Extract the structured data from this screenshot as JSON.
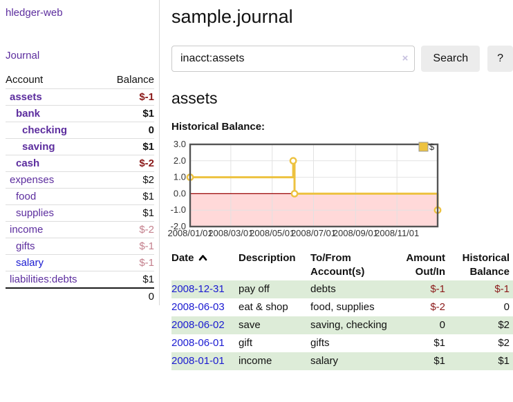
{
  "brand": "hledger-web",
  "nav": {
    "journal_label": "Journal"
  },
  "sidebar_accounts": {
    "headers": {
      "account": "Account",
      "balance": "Balance"
    },
    "rows": [
      {
        "name": "assets",
        "level": 1,
        "bold": true,
        "balance": "$-1",
        "balance_tone": "neg-strong",
        "link_tone": "visited"
      },
      {
        "name": "bank",
        "level": 2,
        "bold": true,
        "balance": "$1",
        "balance_tone": "normal",
        "link_tone": "visited"
      },
      {
        "name": "checking",
        "level": 3,
        "bold": true,
        "balance": "0",
        "balance_tone": "normal",
        "link_tone": "visited"
      },
      {
        "name": "saving",
        "level": 3,
        "bold": true,
        "balance": "$1",
        "balance_tone": "normal",
        "link_tone": "visited"
      },
      {
        "name": "cash",
        "level": 2,
        "bold": true,
        "balance": "$-2",
        "balance_tone": "neg-strong",
        "link_tone": "visited"
      },
      {
        "name": "expenses",
        "level": 1,
        "bold": false,
        "balance": "$2",
        "balance_tone": "normal",
        "link_tone": "visited"
      },
      {
        "name": "food",
        "level": 2,
        "bold": false,
        "balance": "$1",
        "balance_tone": "normal",
        "link_tone": "visited"
      },
      {
        "name": "supplies",
        "level": 2,
        "bold": false,
        "balance": "$1",
        "balance_tone": "normal",
        "link_tone": "visited"
      },
      {
        "name": "income",
        "level": 1,
        "bold": false,
        "balance": "$-2",
        "balance_tone": "neg-soft",
        "link_tone": "visited"
      },
      {
        "name": "gifts",
        "level": 2,
        "bold": false,
        "balance": "$-1",
        "balance_tone": "neg-soft",
        "link_tone": "visited"
      },
      {
        "name": "salary",
        "level": 2,
        "bold": false,
        "balance": "$-1",
        "balance_tone": "neg-soft",
        "link_tone": "unvisited"
      },
      {
        "name": "liabilities:debts",
        "level": 1,
        "bold": false,
        "balance": "$1",
        "balance_tone": "normal",
        "link_tone": "visited"
      }
    ],
    "total": "0"
  },
  "header": {
    "title": "sample.journal"
  },
  "search": {
    "value": "inacct:assets",
    "clear_icon": "×",
    "button_label": "Search",
    "help_label": "?"
  },
  "account_page": {
    "title": "assets",
    "chart_label": "Historical Balance:"
  },
  "chart_data": {
    "type": "line",
    "title": "Historical Balance:",
    "x_range": [
      "2008-01-01",
      "2008-12-31"
    ],
    "ylim": [
      -2.0,
      3.0
    ],
    "y_ticks": [
      3.0,
      2.0,
      1.0,
      0.0,
      -1.0,
      -2.0
    ],
    "x_ticks": [
      {
        "date": "2008-01-01",
        "label": "2008/01/01"
      },
      {
        "date": "2008-03-01",
        "label": "2008/03/01"
      },
      {
        "date": "2008-05-01",
        "label": "2008/05/01"
      },
      {
        "date": "2008-07-01",
        "label": "2008/07/01"
      },
      {
        "date": "2008-09-01",
        "label": "2008/09/01"
      },
      {
        "date": "2008-11-01",
        "label": "2008/11/01"
      }
    ],
    "series": [
      {
        "name": "$",
        "color": "#edc240",
        "step": true,
        "points": [
          {
            "date": "2008-01-01",
            "value": 1
          },
          {
            "date": "2008-06-01",
            "value": 2
          },
          {
            "date": "2008-06-03",
            "value": 0
          },
          {
            "date": "2008-12-31",
            "value": -1
          }
        ]
      }
    ],
    "legend": {
      "position": "top-right",
      "entries": [
        "$"
      ]
    },
    "grid": true,
    "negative_region_fill": "#ffd9d9",
    "zero_line_color": "#990000"
  },
  "register": {
    "headers": {
      "date": "Date",
      "description": "Description",
      "accounts": "To/From Account(s)",
      "amount": "Amount Out/In",
      "balance": "Historical Balance"
    },
    "sort_icon": "chevron-up",
    "rows": [
      {
        "date": "2008-12-31",
        "description": "pay off",
        "accounts": "debts",
        "amount": "$-1",
        "amount_negative": true,
        "balance": "$-1",
        "balance_negative": true
      },
      {
        "date": "2008-06-03",
        "description": "eat & shop",
        "accounts": "food, supplies",
        "amount": "$-2",
        "amount_negative": true,
        "balance": "0",
        "balance_negative": false
      },
      {
        "date": "2008-06-02",
        "description": "save",
        "accounts": "saving, checking",
        "amount": "0",
        "amount_negative": false,
        "balance": "$2",
        "balance_negative": false
      },
      {
        "date": "2008-06-01",
        "description": "gift",
        "accounts": "gifts",
        "amount": "$1",
        "amount_negative": false,
        "balance": "$2",
        "balance_negative": false
      },
      {
        "date": "2008-01-01",
        "description": "income",
        "accounts": "salary",
        "amount": "$1",
        "amount_negative": false,
        "balance": "$1",
        "balance_negative": false
      }
    ]
  },
  "colors": {
    "link_purple": "#5c2d9e",
    "link_blue": "#1a1ad1",
    "negative_strong": "#8b1a1a",
    "negative_soft": "#c4808d",
    "row_stripe_green": "#ddecd8",
    "series_gold": "#edc240",
    "negative_region_pink": "#ffd9d9",
    "zero_line_red": "#990000"
  }
}
